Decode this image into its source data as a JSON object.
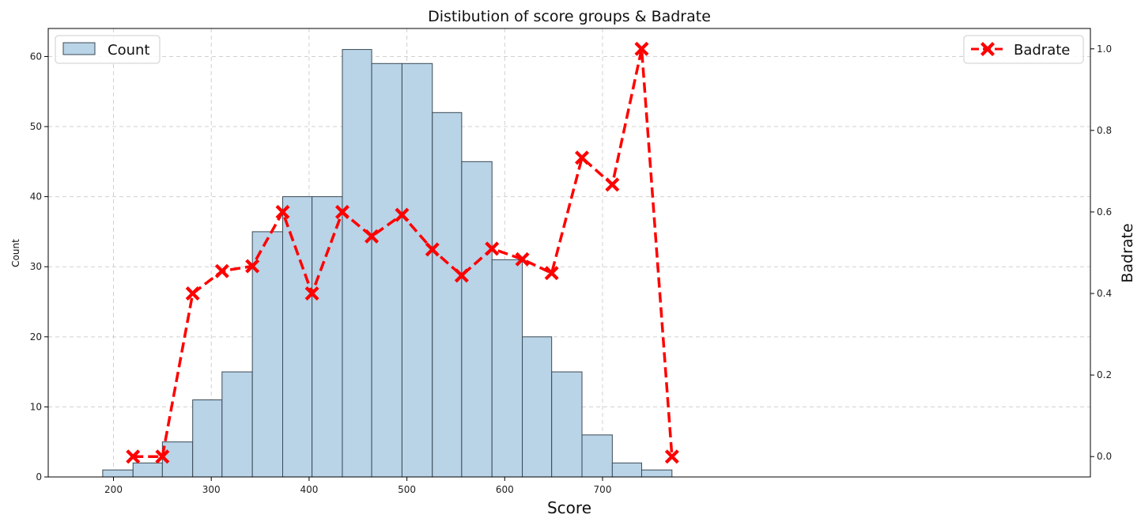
{
  "chart_data": {
    "type": "bar",
    "title": "Distibution of score groups & Badrate",
    "xlabel": "Score",
    "ylabel": "Count",
    "y2label": "Badrate",
    "xlim": [
      160,
      1000
    ],
    "ylim": [
      0,
      64
    ],
    "y2lim": [
      -0.05,
      1.05
    ],
    "xticks": [
      200,
      300,
      400,
      500,
      600,
      700
    ],
    "yticks": [
      0,
      10,
      20,
      30,
      40,
      50,
      60
    ],
    "y2ticks": [
      "0.0",
      "0.2",
      "0.4",
      "0.6",
      "0.8",
      "1.0"
    ],
    "grid": true,
    "bin_edges": [
      189,
      220,
      250,
      281,
      311,
      342,
      373,
      403,
      434,
      464,
      495,
      526,
      556,
      587,
      618,
      648,
      679,
      710,
      740,
      771
    ],
    "series": [
      {
        "name": "Count",
        "type": "bar",
        "color": "#b9d3e7",
        "edge_color": "#3a4a55",
        "values": [
          1,
          2,
          5,
          11,
          15,
          35,
          40,
          40,
          61,
          59,
          59,
          52,
          45,
          31,
          20,
          15,
          6,
          2,
          1
        ]
      },
      {
        "name": "Badrate",
        "type": "line",
        "axis": "right",
        "color": "#ff0000",
        "line_style": "dashed",
        "marker": "X",
        "x": [
          220,
          250,
          281,
          311,
          342,
          373,
          403,
          434,
          464,
          495,
          526,
          556,
          587,
          618,
          648,
          679,
          710,
          740,
          771
        ],
        "values": [
          0.0,
          0.0,
          0.4,
          0.455,
          0.467,
          0.6,
          0.4,
          0.6,
          0.54,
          0.593,
          0.508,
          0.444,
          0.51,
          0.484,
          0.45,
          0.733,
          0.667,
          1.0,
          0.0
        ]
      }
    ],
    "legends": [
      {
        "position": "upper-left",
        "entries": [
          "Count"
        ]
      },
      {
        "position": "upper-right",
        "entries": [
          "Badrate"
        ]
      }
    ]
  }
}
